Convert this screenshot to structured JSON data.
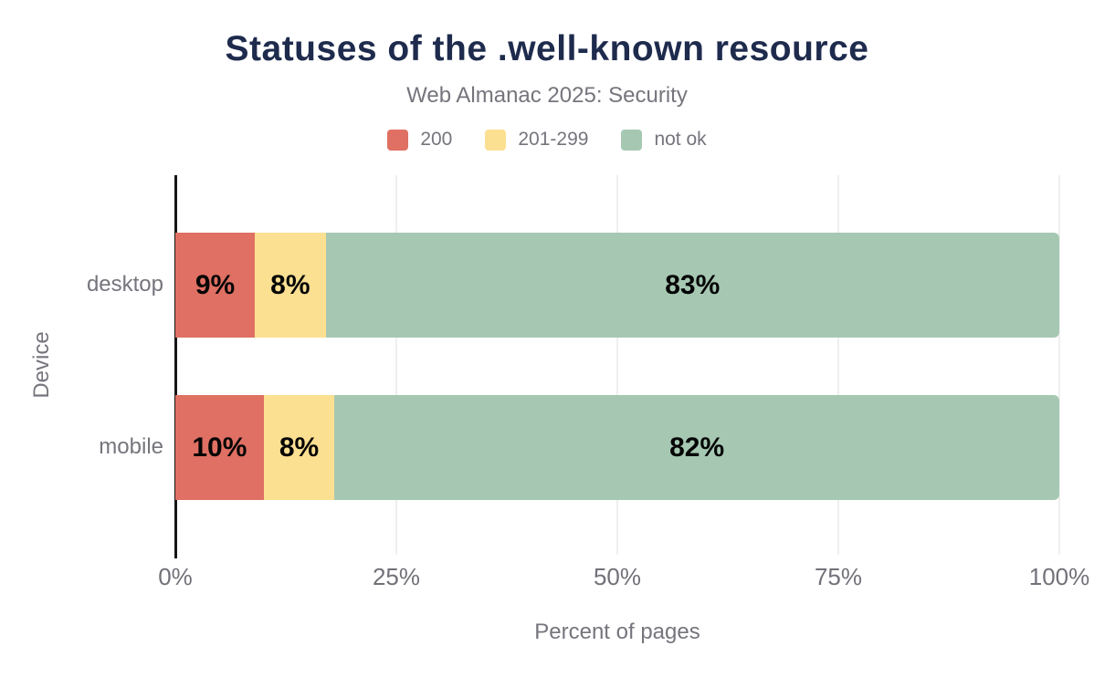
{
  "title": "Statuses of the .well-known resource",
  "subtitle": "Web Almanac 2025: Security",
  "palette": {
    "title_text": "#1e2b4d",
    "muted_text": "#75757d",
    "tick_text": "#717179",
    "bar_label_text": "#050505",
    "gridline": "#efefef",
    "axis_line": "#161616",
    "background": "#ffffff",
    "status_200": "#df7063",
    "status_201_299": "#fce092",
    "status_not_ok": "#a6c8b3"
  },
  "legend": [
    {
      "label": "200",
      "color": "#df7063"
    },
    {
      "label": "201-299",
      "color": "#fce092"
    },
    {
      "label": "not ok",
      "color": "#a6c8b3"
    }
  ],
  "chart_data": {
    "type": "bar",
    "orientation": "horizontal",
    "stacked": true,
    "title": "Statuses of the .well-known resource",
    "subtitle": "Web Almanac 2025: Security",
    "xlabel": "Percent of pages",
    "ylabel": "Device",
    "xlim": [
      0,
      100
    ],
    "grid": "vertical-gridlines-on",
    "legend_position": "top",
    "categories": [
      "desktop",
      "mobile"
    ],
    "series": [
      {
        "name": "200",
        "color": "#df7063",
        "values": [
          9,
          10
        ],
        "labels": [
          "9%",
          "10%"
        ]
      },
      {
        "name": "201-299",
        "color": "#fce092",
        "values": [
          8,
          8
        ],
        "labels": [
          "8%",
          "8%"
        ]
      },
      {
        "name": "not ok",
        "color": "#a6c8b3",
        "values": [
          83,
          82
        ],
        "labels": [
          "83%",
          "82%"
        ]
      }
    ],
    "x_ticks": [
      {
        "value": 0,
        "label": "0%"
      },
      {
        "value": 25,
        "label": "25%"
      },
      {
        "value": 50,
        "label": "50%"
      },
      {
        "value": 75,
        "label": "75%"
      },
      {
        "value": 100,
        "label": "100%"
      }
    ]
  }
}
